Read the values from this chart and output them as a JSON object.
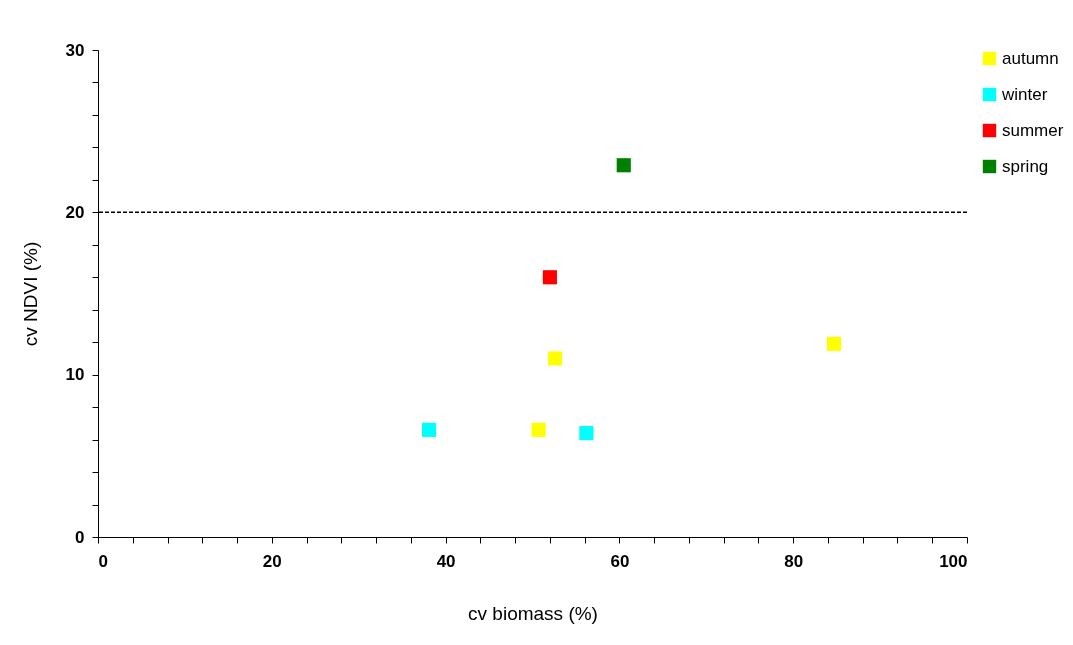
{
  "chart_data": {
    "type": "scatter",
    "xlabel": "cv biomass (%)",
    "ylabel": "cv NDVI (%)",
    "marker": "square",
    "legend": "top right",
    "grid": false,
    "xlim": [
      0,
      100
    ],
    "xticks": [
      0,
      {
        "value": 4,
        "label": null
      },
      {
        "value": 8,
        "label": null
      },
      {
        "value": 12,
        "label": null
      },
      {
        "value": 16,
        "label": null
      },
      20,
      {
        "value": 24,
        "label": null
      },
      {
        "value": 28,
        "label": null
      },
      {
        "value": 32,
        "label": null
      },
      {
        "value": 36,
        "label": null
      },
      40,
      {
        "value": 44,
        "label": null
      },
      {
        "value": 48,
        "label": null
      },
      {
        "value": 52,
        "label": null
      },
      {
        "value": 56,
        "label": null
      },
      60,
      {
        "value": 64,
        "label": null
      },
      {
        "value": 68,
        "label": null
      },
      {
        "value": 72,
        "label": null
      },
      {
        "value": 76,
        "label": null
      },
      80,
      {
        "value": 84,
        "label": null
      },
      {
        "value": 88,
        "label": null
      },
      {
        "value": 92,
        "label": null
      },
      {
        "value": 96,
        "label": null
      },
      100
    ],
    "ylim": [
      0,
      30
    ],
    "yticks": [
      0,
      {
        "value": 2,
        "label": null
      },
      {
        "value": 4,
        "label": null
      },
      {
        "value": 6,
        "label": null
      },
      {
        "value": 8,
        "label": null
      },
      10,
      {
        "value": 12,
        "label": null
      },
      {
        "value": 14,
        "label": null
      },
      {
        "value": 16,
        "label": null
      },
      {
        "value": 18,
        "label": null
      },
      20,
      {
        "value": 22,
        "label": null
      },
      {
        "value": 24,
        "label": null
      },
      {
        "value": 26,
        "label": null
      },
      {
        "value": 28,
        "label": null
      },
      30
    ],
    "ref_lines": [
      {
        "axis": "y",
        "value": 20,
        "color": "#000000",
        "line_style": "dashed"
      }
    ],
    "series": [
      {
        "name": "autumn",
        "color": "#ffff00",
        "x": [
          50.7,
          52.6,
          84.7
        ],
        "values": [
          6.6,
          11.0,
          11.9
        ]
      },
      {
        "name": "winter",
        "color": "#00ffff",
        "x": [
          38.1,
          56.2
        ],
        "values": [
          6.6,
          6.4
        ]
      },
      {
        "name": "summer",
        "color": "#ff0000",
        "x": [
          52.0
        ],
        "values": [
          16.0
        ]
      },
      {
        "name": "spring",
        "color": "#008000",
        "x": [
          60.5
        ],
        "values": [
          22.9
        ]
      }
    ]
  }
}
